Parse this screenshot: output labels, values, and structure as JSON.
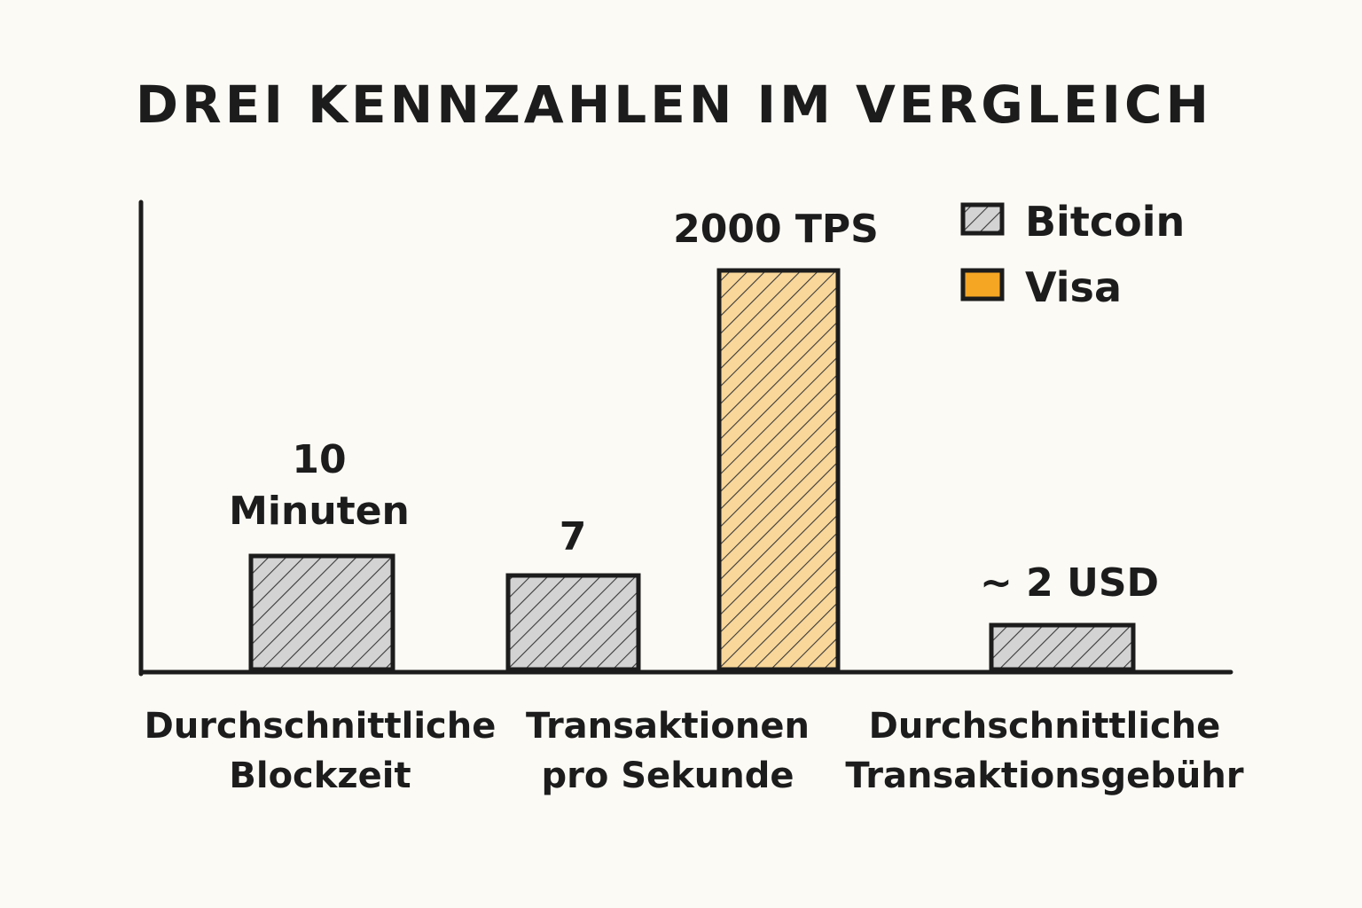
{
  "chart_data": {
    "type": "bar",
    "title": "DREI KENNZAHLEN IM VERGLEICH",
    "legend": {
      "placement": "top-right",
      "entries": [
        {
          "name": "Bitcoin",
          "color": "#d3d3d3"
        },
        {
          "name": "Visa",
          "color": "#f5a623"
        }
      ]
    },
    "categories": [
      {
        "lines": [
          "Durchschnittliche",
          "Blockzeit"
        ]
      },
      {
        "lines": [
          "Transaktionen",
          "pro Sekunde"
        ]
      },
      {
        "lines": [
          "Durchschnittliche",
          "Transaktionsgebühr"
        ]
      }
    ],
    "bars": [
      {
        "category": 0,
        "series": "Bitcoin",
        "value": 10,
        "label_lines": [
          "10",
          "Minuten"
        ]
      },
      {
        "category": 1,
        "series": "Bitcoin",
        "value": 7,
        "label_lines": [
          "7"
        ]
      },
      {
        "category": 1,
        "series": "Visa",
        "value": 2000,
        "label_lines": [
          "2000 TPS"
        ]
      },
      {
        "category": 2,
        "series": "Bitcoin",
        "value": 2,
        "label_lines": [
          "~ 2 USD"
        ]
      }
    ],
    "colors": {
      "bitcoin_fill": "#d3d3d3",
      "visa_fill": "#f9d79a",
      "visa_legend": "#f5a623",
      "stroke": "#1c1c1c",
      "background": "#fbfaf5"
    },
    "grid": false,
    "ylabel": "",
    "xlabel": ""
  }
}
